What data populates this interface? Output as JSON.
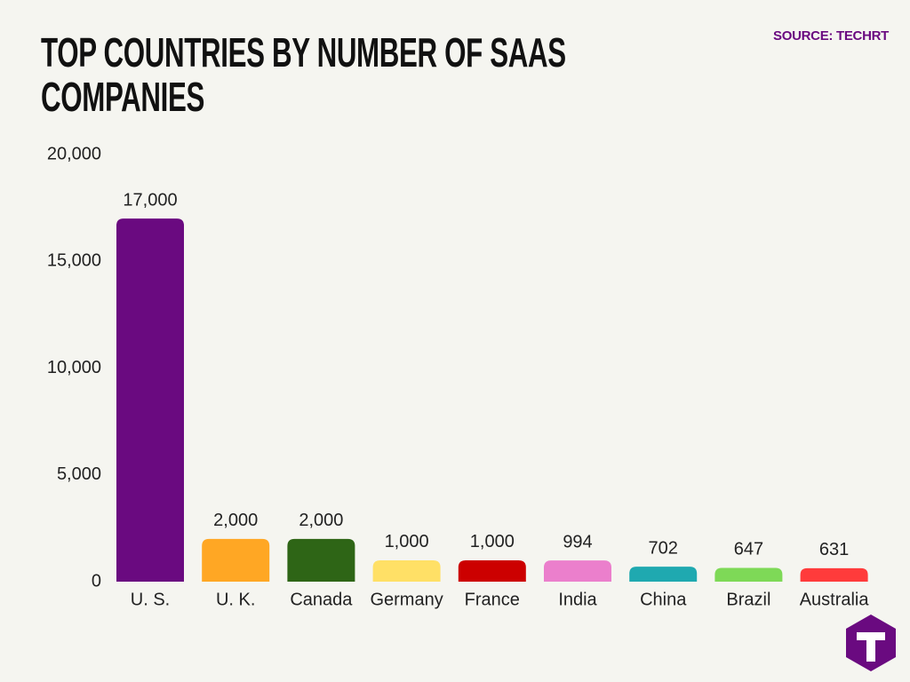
{
  "chart_data": {
    "type": "bar",
    "title": "TOP COUNTRIES BY NUMBER OF SAAS COMPANIES",
    "source": "SOURCE: TECHRT",
    "categories": [
      "U. S.",
      "U. K.",
      "Canada",
      "Germany",
      "France",
      "India",
      "China",
      "Brazil",
      "Australia"
    ],
    "values": [
      17000,
      2000,
      2000,
      1000,
      1000,
      994,
      702,
      647,
      631
    ],
    "value_labels": [
      "17,000",
      "2,000",
      "2,000",
      "1,000",
      "1,000",
      "994",
      "702",
      "647",
      "631"
    ],
    "colors": [
      "#6a0a80",
      "#ffa724",
      "#2e6516",
      "#ffe066",
      "#cc0000",
      "#eb7fcc",
      "#1fa9b0",
      "#7ed957",
      "#ff3b3b"
    ],
    "ylim": [
      0,
      20000
    ],
    "yticks": [
      0,
      {
        "value": 5000,
        "label": "5,000"
      },
      {
        "value": 10000,
        "label": "10,000"
      },
      {
        "value": 15000,
        "label": "15,000"
      },
      {
        "value": 20000,
        "label": "20,000"
      }
    ]
  }
}
